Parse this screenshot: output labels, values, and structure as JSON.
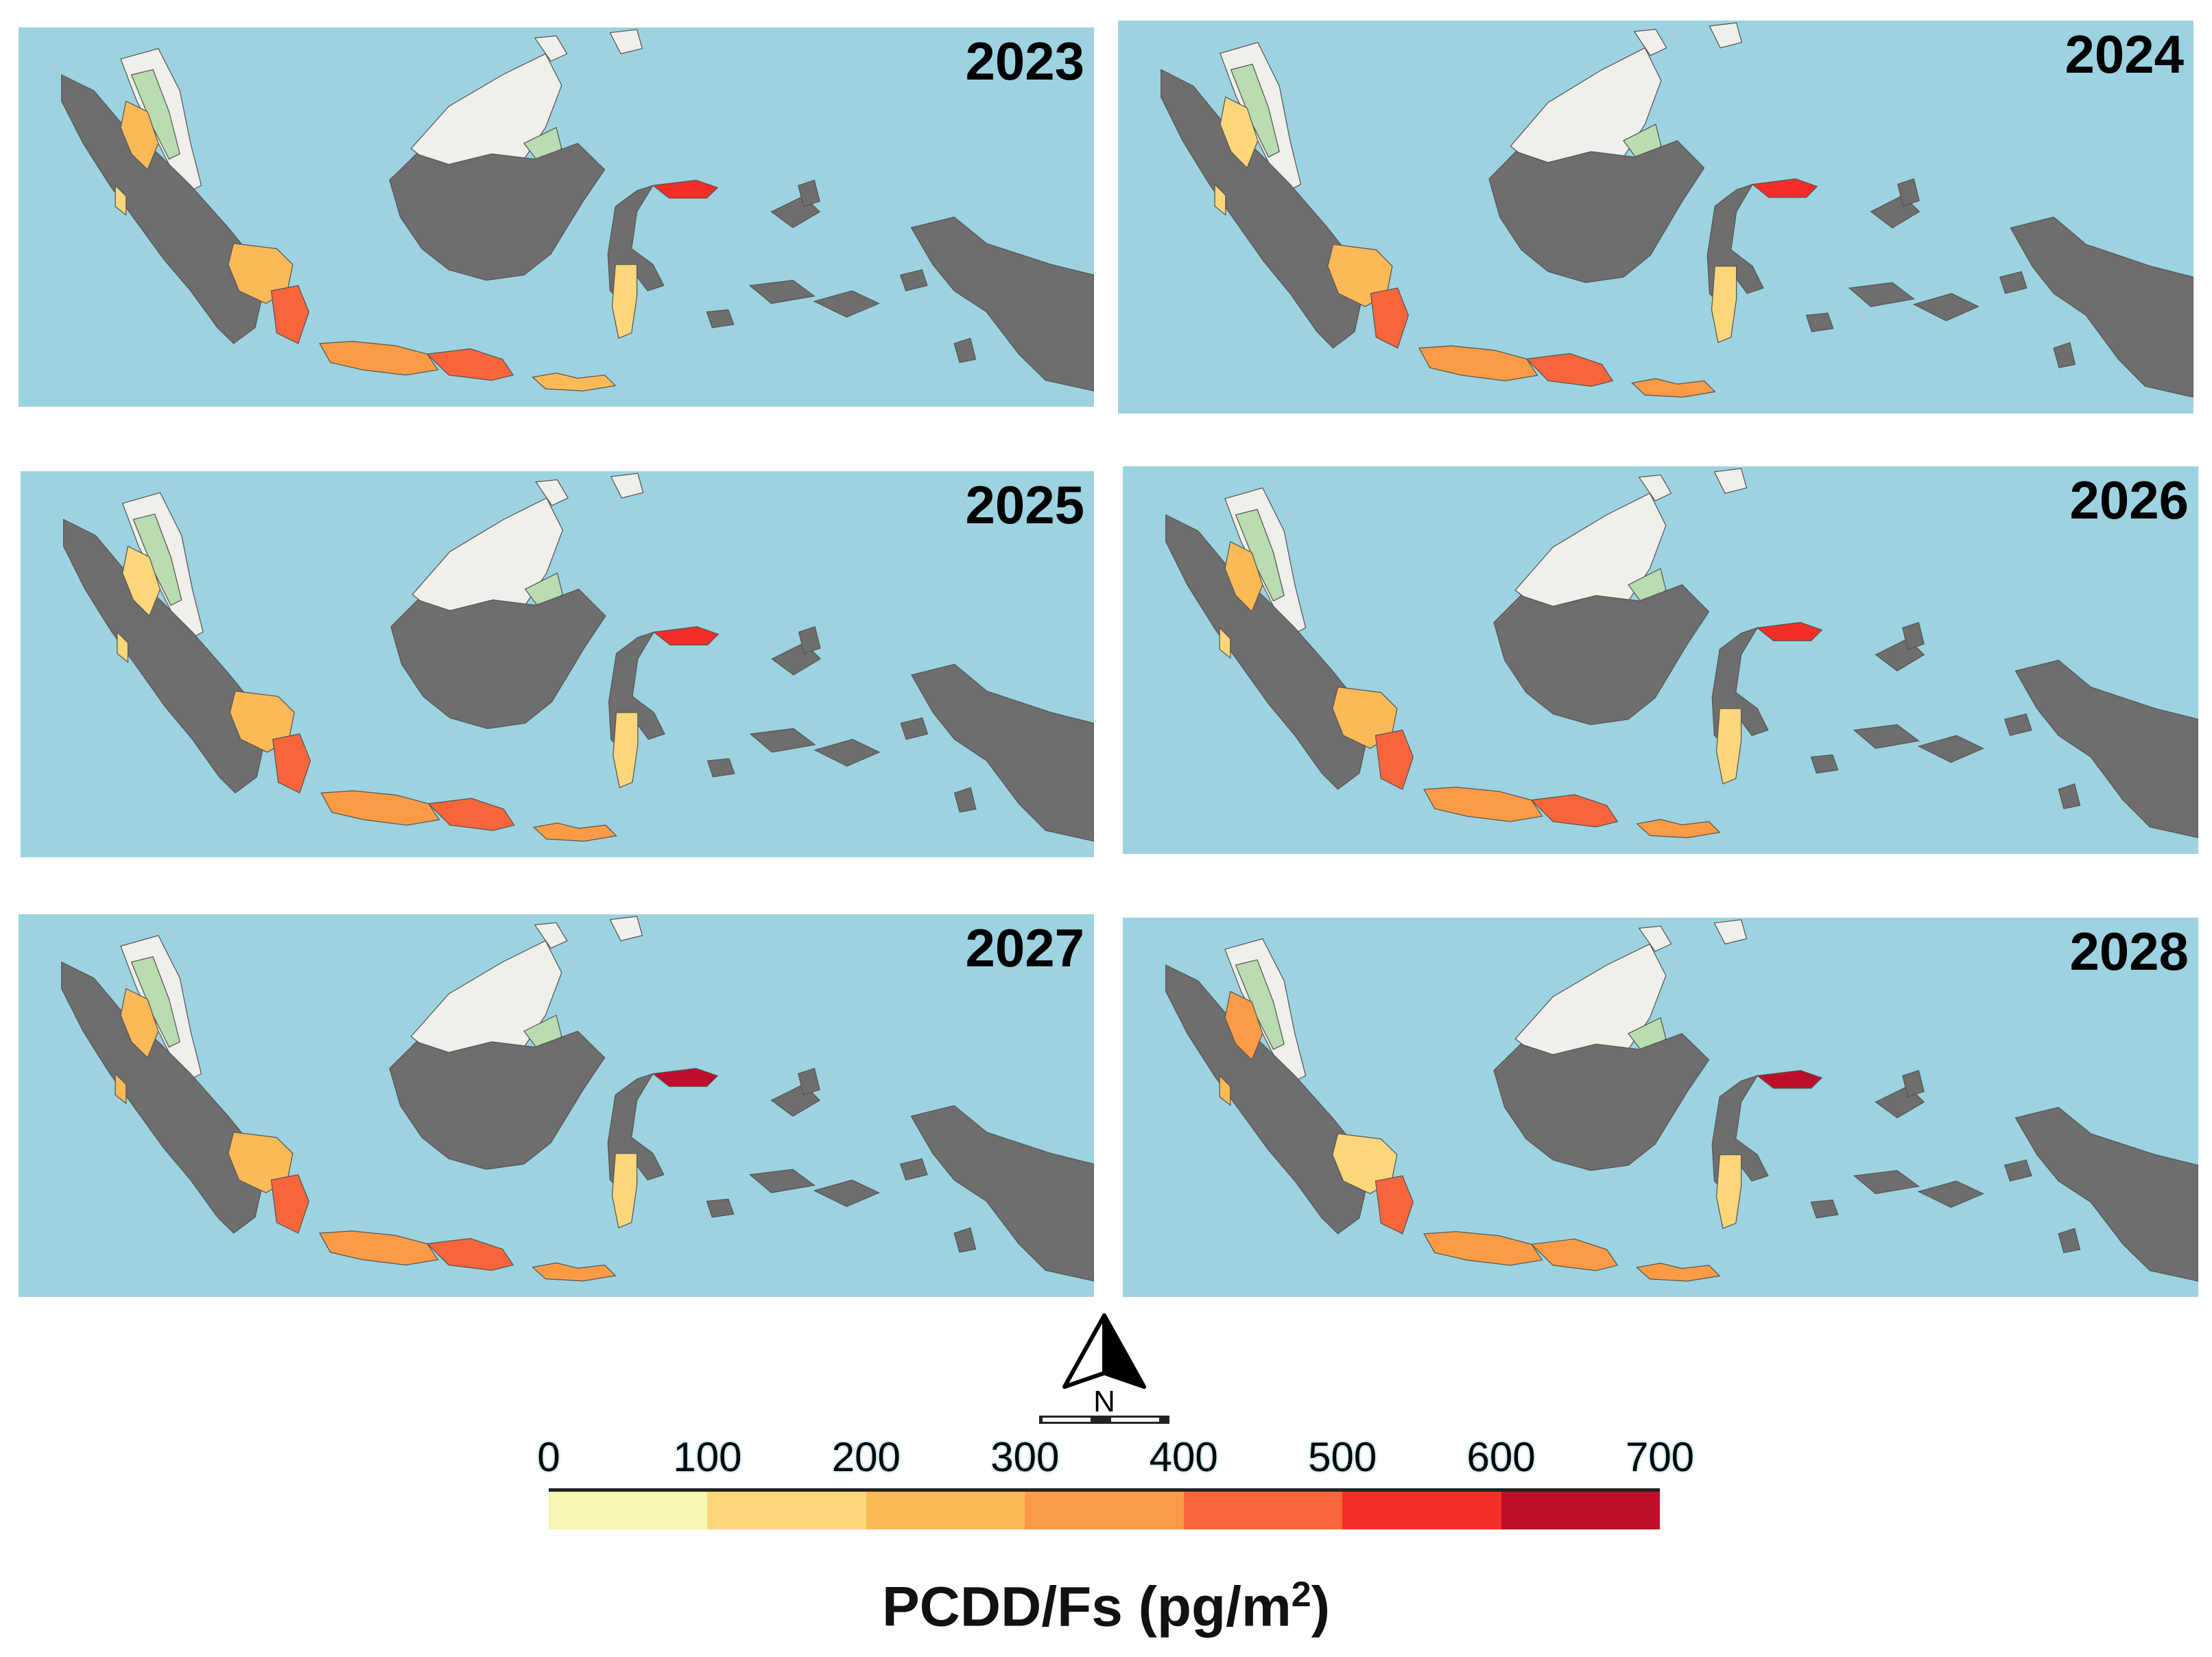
{
  "colors": {
    "sea": "#9dd3e0",
    "neighbor_land": "#f0efe9",
    "forest": "#b9dcb0",
    "no_data": "#6e6e6e",
    "legend_bins": [
      "#f6f5b3",
      "#fcd67a",
      "#fcb957",
      "#fc9b45",
      "#f9653a",
      "#f22e27",
      "#bd0f2c"
    ]
  },
  "panels": [
    {
      "year": "2023",
      "levels": {
        "aceh": 2,
        "w_sumatra": 1,
        "s_sumatra": 2,
        "lampung": 4,
        "w_java": 3,
        "e_java": 4,
        "bali_nt": 2,
        "n_sulawesi": 5,
        "s_sulawesi": 1
      }
    },
    {
      "year": "2024",
      "levels": {
        "aceh": 1,
        "w_sumatra": 1,
        "s_sumatra": 2,
        "lampung": 4,
        "w_java": 3,
        "e_java": 4,
        "bali_nt": 3,
        "n_sulawesi": 5,
        "s_sulawesi": 1
      }
    },
    {
      "year": "2025",
      "levels": {
        "aceh": 1,
        "w_sumatra": 1,
        "s_sumatra": 2,
        "lampung": 4,
        "w_java": 3,
        "e_java": 4,
        "bali_nt": 3,
        "n_sulawesi": 5,
        "s_sulawesi": 1
      }
    },
    {
      "year": "2026",
      "levels": {
        "aceh": 2,
        "w_sumatra": 1,
        "s_sumatra": 2,
        "lampung": 4,
        "w_java": 3,
        "e_java": 4,
        "bali_nt": 3,
        "n_sulawesi": 5,
        "s_sulawesi": 1
      }
    },
    {
      "year": "2027",
      "levels": {
        "aceh": 2,
        "w_sumatra": 2,
        "s_sumatra": 2,
        "lampung": 4,
        "w_java": 3,
        "e_java": 4,
        "bali_nt": 3,
        "n_sulawesi": 6,
        "s_sulawesi": 1
      }
    },
    {
      "year": "2028",
      "levels": {
        "aceh": 3,
        "w_sumatra": 2,
        "s_sumatra": 1,
        "lampung": 4,
        "w_java": 3,
        "e_java": 3,
        "bali_nt": 3,
        "n_sulawesi": 6,
        "s_sulawesi": 1
      }
    }
  ],
  "legend": {
    "ticks": [
      "0",
      "100",
      "200",
      "300",
      "400",
      "500",
      "600",
      "700"
    ],
    "title_main": "PCDD/Fs (pg/m",
    "title_sup": "2",
    "title_close": ")"
  },
  "north_arrow": {
    "label": "N"
  }
}
